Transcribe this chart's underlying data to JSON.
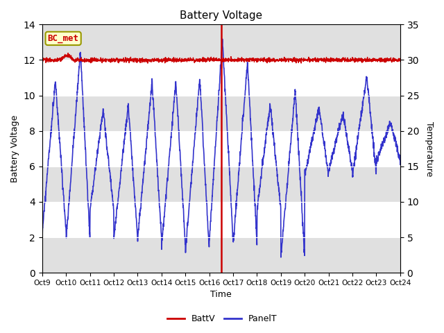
{
  "title": "Battery Voltage",
  "xlabel": "Time",
  "ylabel_left": "Battery Voltage",
  "ylabel_right": "Temperature",
  "ylim_left": [
    0,
    14
  ],
  "ylim_right": [
    0,
    35
  ],
  "yticks_left": [
    0,
    2,
    4,
    6,
    8,
    10,
    12,
    14
  ],
  "yticks_right": [
    0,
    5,
    10,
    15,
    20,
    25,
    30,
    35
  ],
  "x_tick_labels": [
    "Oct 9",
    "Oct 10",
    "Oct 11",
    "Oct 12",
    "Oct 13",
    "Oct 14",
    "Oct 15",
    "Oct 16",
    "Oct 17",
    "Oct 18",
    "Oct 19",
    "Oct 20",
    "Oct 21",
    "Oct 22",
    "Oct 23",
    "Oct 24"
  ],
  "batt_color": "#cc0000",
  "panel_color": "#3333cc",
  "vline_color": "#cc0000",
  "annotation_text": "BC_met",
  "annotation_color": "#cc0000",
  "annotation_bg": "#ffffcc",
  "annotation_edge": "#999900",
  "fig_bg": "#ffffff",
  "plot_bg": "#ffffff",
  "grid_color": "#d8d8d8",
  "legend_batt": "BattV",
  "legend_panel": "PanelT",
  "band_color": "#e0e0e0"
}
